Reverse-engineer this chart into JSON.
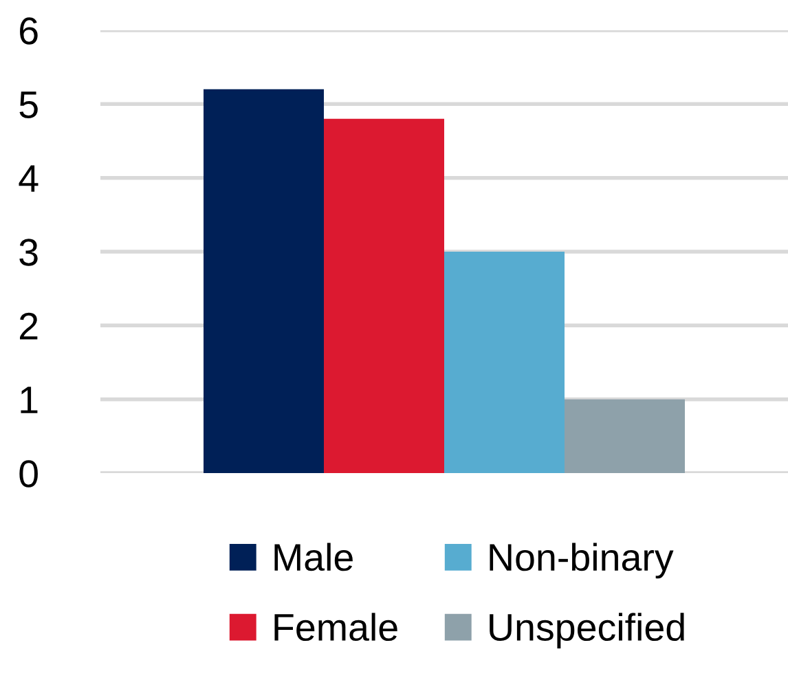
{
  "chart_data": {
    "type": "bar",
    "categories": [
      null
    ],
    "series": [
      {
        "name": "Male",
        "color": "#002057",
        "values": [
          5.2
        ]
      },
      {
        "name": "Female",
        "color": "#dc1930",
        "values": [
          4.8
        ]
      },
      {
        "name": "Non-binary",
        "color": "#57acd0",
        "values": [
          3.0
        ]
      },
      {
        "name": "Unspecified",
        "color": "#8ea1aa",
        "values": [
          1.0
        ]
      }
    ],
    "ylim": [
      0,
      6
    ],
    "yticks": [
      0,
      1,
      2,
      3,
      4,
      5,
      6
    ],
    "grid": "y",
    "legend": "bottom"
  }
}
